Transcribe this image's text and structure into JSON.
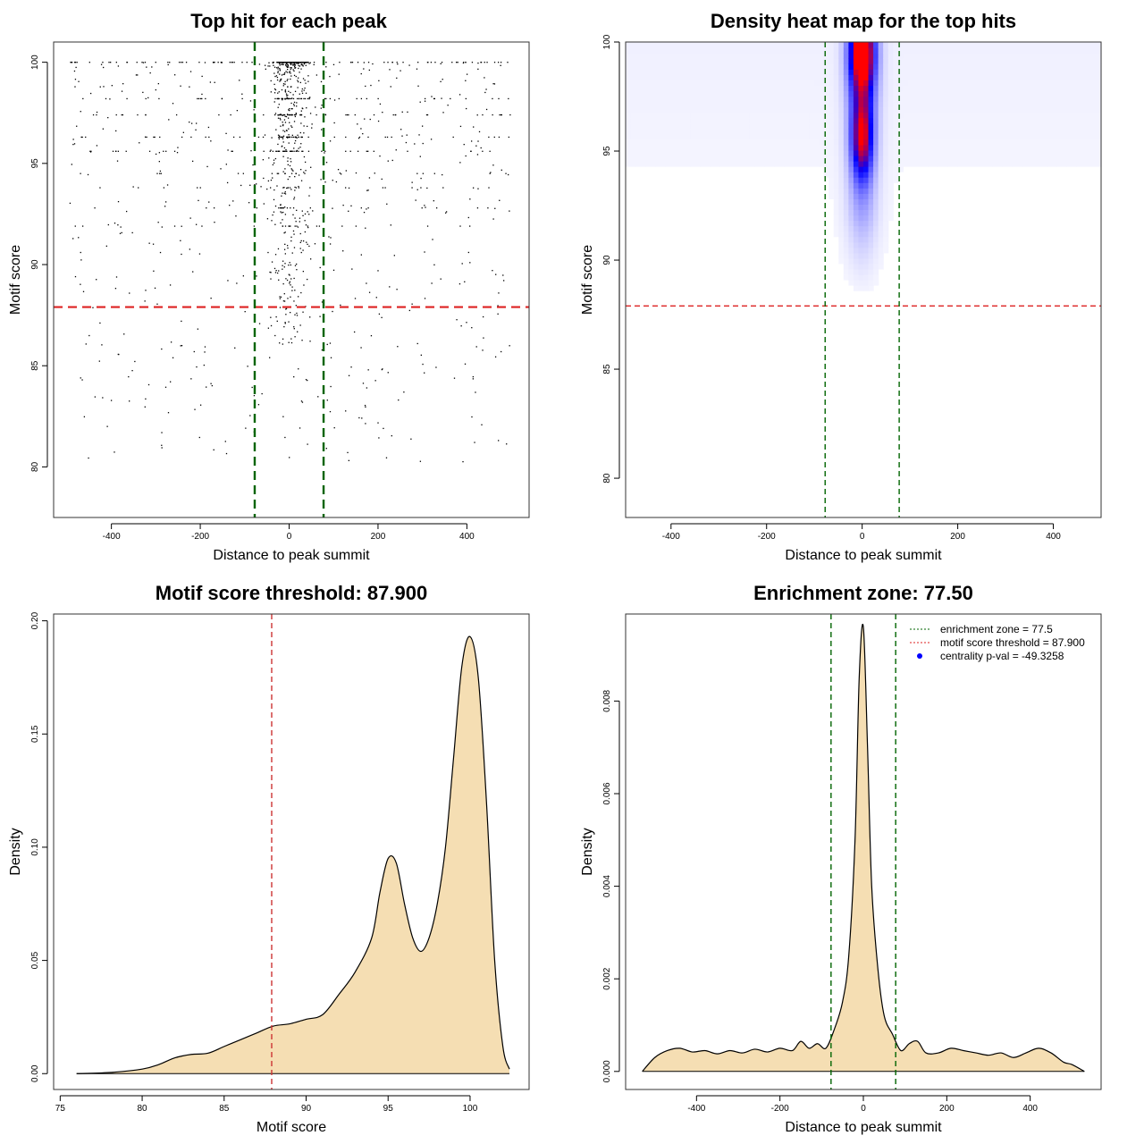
{
  "chart_data": [
    {
      "id": "scatter",
      "type": "scatter",
      "title": "Top hit for each peak",
      "xlabel": "Distance to peak summit",
      "ylabel": "Motif score",
      "xlim": [
        -530,
        540
      ],
      "ylim": [
        77.5,
        101
      ],
      "xticks": [
        -400,
        -200,
        0,
        200,
        400
      ],
      "yticks": [
        80,
        85,
        90,
        95,
        100
      ],
      "x_tick_labels": [
        "-400",
        "-200",
        "0",
        "200",
        "400"
      ],
      "y_tick_labels": [
        "80",
        "85",
        "90",
        "95",
        "100"
      ],
      "hline": {
        "y": 87.9,
        "color": "#dd2222"
      },
      "vlines": {
        "x": [
          -77.5,
          77.5
        ],
        "color": "#006400"
      },
      "point_color": "#000000",
      "score_rows": [
        100,
        98.2,
        97.4,
        96.3,
        95.6,
        94.5,
        93.8,
        92.8,
        91.9
      ],
      "x_range": [
        -495,
        500
      ]
    },
    {
      "id": "heatmap",
      "type": "heatmap",
      "title": "Density heat map for the top hits",
      "xlabel": "Distance to peak summit",
      "ylabel": "Motif score",
      "xlim": [
        -495,
        500
      ],
      "ylim": [
        78.2,
        100
      ],
      "xticks": [
        -400,
        -200,
        0,
        200,
        400
      ],
      "yticks": [
        80,
        85,
        90,
        95,
        100
      ],
      "x_tick_labels": [
        "-400",
        "-200",
        "0",
        "200",
        "400"
      ],
      "y_tick_labels": [
        "80",
        "85",
        "90",
        "95",
        "100"
      ],
      "hline": {
        "y": 87.9,
        "color": "#dd2222"
      },
      "vlines": {
        "x": [
          -77.5,
          77.5
        ],
        "color": "#006400"
      },
      "hotspots": [
        {
          "x": 0,
          "y": 99.5,
          "sx": 18,
          "sy": 1.2,
          "level": "high"
        },
        {
          "x": 0,
          "y": 95.7,
          "sx": 15,
          "sy": 1.3,
          "level": "mid"
        }
      ],
      "low_color": "#ffffff",
      "mid_color": "#0000ff",
      "high_color": "#ff0000"
    },
    {
      "id": "score-density",
      "type": "area",
      "title": "Motif score threshold: 87.900",
      "xlabel": "Motif score",
      "ylabel": "Density",
      "xlim": [
        74.6,
        103.6
      ],
      "ylim": [
        -0.007,
        0.203
      ],
      "xticks": [
        75,
        80,
        85,
        90,
        95,
        100
      ],
      "yticks": [
        0.0,
        0.05,
        0.1,
        0.15,
        0.2
      ],
      "x_tick_labels": [
        "75",
        "80",
        "85",
        "90",
        "95",
        "100"
      ],
      "y_tick_labels": [
        "0.00",
        "0.05",
        "0.10",
        "0.15",
        "0.20"
      ],
      "x": [
        76,
        78,
        80,
        81,
        82,
        83,
        84,
        85,
        86,
        87,
        88,
        89,
        90,
        91,
        92,
        93,
        94,
        94.5,
        95,
        95.5,
        96,
        96.5,
        97,
        97.5,
        98,
        98.5,
        99,
        99.5,
        100,
        100.5,
        101,
        101.5,
        102,
        102.4
      ],
      "y": [
        0.0,
        0.0005,
        0.002,
        0.004,
        0.007,
        0.0085,
        0.009,
        0.012,
        0.015,
        0.018,
        0.021,
        0.022,
        0.024,
        0.026,
        0.035,
        0.045,
        0.06,
        0.08,
        0.095,
        0.093,
        0.075,
        0.06,
        0.054,
        0.06,
        0.075,
        0.1,
        0.14,
        0.18,
        0.193,
        0.175,
        0.12,
        0.05,
        0.012,
        0.002
      ],
      "vline": {
        "x": 87.9,
        "color": "#cc3333"
      },
      "fill": "#f5deb3"
    },
    {
      "id": "distance-density",
      "type": "area",
      "title": "Enrichment zone: 77.50",
      "xlabel": "Distance to peak summit",
      "ylabel": "Density",
      "xlim": [
        -570,
        570
      ],
      "ylim": [
        -0.00039,
        0.00988
      ],
      "xticks": [
        -400,
        -200,
        0,
        200,
        400
      ],
      "yticks": [
        0.0,
        0.002,
        0.004,
        0.006,
        0.008
      ],
      "x_tick_labels": [
        "-400",
        "-200",
        "0",
        "200",
        "400"
      ],
      "y_tick_labels": [
        "0.000",
        "0.002",
        "0.004",
        "0.006",
        "0.008"
      ],
      "x": [
        -530,
        -500,
        -470,
        -440,
        -410,
        -380,
        -350,
        -320,
        -290,
        -260,
        -230,
        -200,
        -170,
        -150,
        -130,
        -110,
        -90,
        -70,
        -50,
        -35,
        -20,
        -10,
        0,
        10,
        20,
        35,
        50,
        70,
        90,
        110,
        130,
        150,
        180,
        210,
        240,
        270,
        300,
        330,
        360,
        390,
        420,
        450,
        480,
        500,
        530
      ],
      "y": [
        0.0,
        0.0003,
        0.00045,
        0.0005,
        0.00042,
        0.00045,
        0.00038,
        0.00045,
        0.0004,
        0.00048,
        0.00042,
        0.0005,
        0.00045,
        0.00065,
        0.0005,
        0.0006,
        0.0005,
        0.0009,
        0.0015,
        0.0025,
        0.005,
        0.0085,
        0.0096,
        0.007,
        0.004,
        0.0022,
        0.0012,
        0.0008,
        0.00045,
        0.0006,
        0.00065,
        0.0004,
        0.0004,
        0.0005,
        0.00045,
        0.0004,
        0.00035,
        0.0004,
        0.0003,
        0.0004,
        0.0005,
        0.0004,
        0.0002,
        0.00015,
        0.0
      ],
      "vlines": {
        "x": [
          -77.5,
          77.5
        ],
        "color": "#006400"
      },
      "fill": "#f5deb3",
      "legend": [
        {
          "label": "enrichment zone = 77.5",
          "color": "#006400",
          "style": "dotted-line"
        },
        {
          "label": "motif score threshold = 87.900",
          "color": "#dd2222",
          "style": "dotted-line"
        },
        {
          "label": "centrality p-val = -49.3258",
          "color": "#0000ff",
          "style": "dot"
        }
      ]
    }
  ]
}
